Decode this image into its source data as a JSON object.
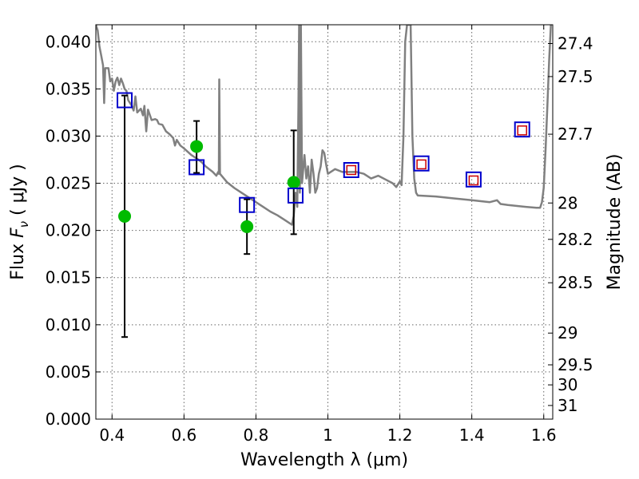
{
  "chart_data": {
    "type": "scatter",
    "xlabel": "Wavelength  λ (μm)",
    "ylabel": "Flux  F_ν  ( μJy )",
    "ylabel_parts": {
      "main": "Flux  ",
      "var": "F",
      "sub": "ν",
      "unit": "  ( μJy )"
    },
    "y2label": "Magnitude (AB)",
    "xlim": [
      0.355,
      1.625
    ],
    "ylim": [
      0.0,
      0.0418
    ],
    "x_ticks": [
      {
        "value": 0.4,
        "label": "0.4"
      },
      {
        "value": 0.6,
        "label": "0.6"
      },
      {
        "value": 0.8,
        "label": "0.8"
      },
      {
        "value": 1.0,
        "label": "1"
      },
      {
        "value": 1.2,
        "label": "1.2"
      },
      {
        "value": 1.4,
        "label": "1.4"
      },
      {
        "value": 1.6,
        "label": "1.6"
      }
    ],
    "y_ticks": [
      {
        "value": 0.0,
        "label": "0.000"
      },
      {
        "value": 0.005,
        "label": "0.005"
      },
      {
        "value": 0.01,
        "label": "0.010"
      },
      {
        "value": 0.015,
        "label": "0.015"
      },
      {
        "value": 0.02,
        "label": "0.020"
      },
      {
        "value": 0.025,
        "label": "0.025"
      },
      {
        "value": 0.03,
        "label": "0.030"
      },
      {
        "value": 0.035,
        "label": "0.035"
      },
      {
        "value": 0.04,
        "label": "0.040"
      }
    ],
    "y2_ticks": [
      {
        "mag": 27.4,
        "label": "27.4"
      },
      {
        "mag": 27.5,
        "label": "27.5"
      },
      {
        "mag": 27.7,
        "label": "27.7"
      },
      {
        "mag": 28.0,
        "label": "28"
      },
      {
        "mag": 28.2,
        "label": "28.2"
      },
      {
        "mag": 28.5,
        "label": "28.5"
      },
      {
        "mag": 29.0,
        "label": "29"
      },
      {
        "mag": 29.5,
        "label": "29.5"
      },
      {
        "mag": 30.0,
        "label": "30"
      },
      {
        "mag": 31.0,
        "label": "31"
      }
    ],
    "grid": true,
    "colors": {
      "model": "#808080",
      "observed": "#00bb00",
      "model_phot": "#0000cc",
      "upper": "#cc0000",
      "errorbar": "#000000"
    },
    "series": [
      {
        "kind": "line",
        "points": [
          [
            0.355,
            0.0418
          ],
          [
            0.36,
            0.0412
          ],
          [
            0.365,
            0.0395
          ],
          [
            0.37,
            0.0385
          ],
          [
            0.375,
            0.0375
          ],
          [
            0.378,
            0.0335
          ],
          [
            0.381,
            0.0372
          ],
          [
            0.39,
            0.0372
          ],
          [
            0.395,
            0.0358
          ],
          [
            0.4,
            0.0361
          ],
          [
            0.405,
            0.0348
          ],
          [
            0.41,
            0.0358
          ],
          [
            0.415,
            0.0362
          ],
          [
            0.42,
            0.0354
          ],
          [
            0.425,
            0.0361
          ],
          [
            0.43,
            0.0356
          ],
          [
            0.435,
            0.035
          ],
          [
            0.44,
            0.0348
          ],
          [
            0.445,
            0.0338
          ],
          [
            0.45,
            0.0335
          ],
          [
            0.455,
            0.0332
          ],
          [
            0.46,
            0.0327
          ],
          [
            0.465,
            0.0342
          ],
          [
            0.47,
            0.0325
          ],
          [
            0.48,
            0.0329
          ],
          [
            0.486,
            0.0322
          ],
          [
            0.49,
            0.0332
          ],
          [
            0.495,
            0.0305
          ],
          [
            0.5,
            0.0328
          ],
          [
            0.51,
            0.0317
          ],
          [
            0.52,
            0.0318
          ],
          [
            0.525,
            0.0317
          ],
          [
            0.53,
            0.0313
          ],
          [
            0.54,
            0.0312
          ],
          [
            0.55,
            0.0305
          ],
          [
            0.56,
            0.0302
          ],
          [
            0.57,
            0.0298
          ],
          [
            0.575,
            0.029
          ],
          [
            0.58,
            0.0296
          ],
          [
            0.59,
            0.029
          ],
          [
            0.6,
            0.0287
          ],
          [
            0.62,
            0.028
          ],
          [
            0.64,
            0.0275
          ],
          [
            0.65,
            0.0272
          ],
          [
            0.66,
            0.0268
          ],
          [
            0.68,
            0.0262
          ],
          [
            0.69,
            0.0258
          ],
          [
            0.695,
            0.0262
          ],
          [
            0.697,
            0.026
          ],
          [
            0.698,
            0.036
          ],
          [
            0.7,
            0.026
          ],
          [
            0.72,
            0.0251
          ],
          [
            0.74,
            0.0245
          ],
          [
            0.76,
            0.024
          ],
          [
            0.78,
            0.0235
          ],
          [
            0.8,
            0.023
          ],
          [
            0.82,
            0.0225
          ],
          [
            0.84,
            0.022
          ],
          [
            0.86,
            0.0216
          ],
          [
            0.88,
            0.0211
          ],
          [
            0.9,
            0.0206
          ],
          [
            0.905,
            0.0215
          ],
          [
            0.91,
            0.024
          ],
          [
            0.915,
            0.0225
          ],
          [
            0.918,
            0.033
          ],
          [
            0.92,
            0.0418
          ],
          [
            0.922,
            0.024
          ],
          [
            0.925,
            0.0418
          ],
          [
            0.928,
            0.025
          ],
          [
            0.935,
            0.028
          ],
          [
            0.94,
            0.0255
          ],
          [
            0.945,
            0.0268
          ],
          [
            0.95,
            0.024
          ],
          [
            0.955,
            0.0275
          ],
          [
            0.96,
            0.026
          ],
          [
            0.965,
            0.024
          ],
          [
            0.97,
            0.0245
          ],
          [
            0.975,
            0.026
          ],
          [
            0.98,
            0.0268
          ],
          [
            0.985,
            0.0285
          ],
          [
            0.99,
            0.0282
          ],
          [
            0.995,
            0.027
          ],
          [
            1.0,
            0.026
          ],
          [
            1.02,
            0.0265
          ],
          [
            1.04,
            0.0262
          ],
          [
            1.06,
            0.0262
          ],
          [
            1.08,
            0.0262
          ],
          [
            1.1,
            0.026
          ],
          [
            1.12,
            0.0255
          ],
          [
            1.14,
            0.0258
          ],
          [
            1.16,
            0.0254
          ],
          [
            1.18,
            0.025
          ],
          [
            1.19,
            0.0246
          ],
          [
            1.2,
            0.0252
          ],
          [
            1.205,
            0.0248
          ],
          [
            1.21,
            0.03
          ],
          [
            1.215,
            0.04
          ],
          [
            1.22,
            0.0418
          ],
          [
            1.23,
            0.0418
          ],
          [
            1.235,
            0.03
          ],
          [
            1.24,
            0.0255
          ],
          [
            1.245,
            0.024
          ],
          [
            1.25,
            0.0237
          ],
          [
            1.3,
            0.0236
          ],
          [
            1.35,
            0.0234
          ],
          [
            1.4,
            0.0232
          ],
          [
            1.45,
            0.023
          ],
          [
            1.47,
            0.0232
          ],
          [
            1.48,
            0.0228
          ],
          [
            1.5,
            0.0227
          ],
          [
            1.55,
            0.0225
          ],
          [
            1.58,
            0.0224
          ],
          [
            1.59,
            0.0224
          ],
          [
            1.595,
            0.023
          ],
          [
            1.6,
            0.0245
          ],
          [
            1.605,
            0.0285
          ],
          [
            1.61,
            0.033
          ],
          [
            1.615,
            0.038
          ],
          [
            1.62,
            0.0418
          ]
        ]
      },
      {
        "kind": "observed",
        "points": [
          {
            "x": 0.435,
            "y": 0.0215,
            "yerr_low": 0.0087,
            "yerr_high": 0.0343
          },
          {
            "x": 0.635,
            "y": 0.0289,
            "yerr_low": 0.0261,
            "yerr_high": 0.0316
          },
          {
            "x": 0.775,
            "y": 0.0204,
            "yerr_low": 0.0175,
            "yerr_high": 0.0233
          },
          {
            "x": 0.905,
            "y": 0.0251,
            "yerr_low": 0.0196,
            "yerr_high": 0.0306
          }
        ]
      },
      {
        "kind": "model_phot",
        "points": [
          {
            "x": 0.435,
            "y": 0.0338
          },
          {
            "x": 0.635,
            "y": 0.0267
          },
          {
            "x": 0.775,
            "y": 0.0227
          },
          {
            "x": 0.91,
            "y": 0.0237
          },
          {
            "x": 1.065,
            "y": 0.0264
          },
          {
            "x": 1.26,
            "y": 0.0271
          },
          {
            "x": 1.405,
            "y": 0.0254
          },
          {
            "x": 1.54,
            "y": 0.0307
          }
        ]
      },
      {
        "kind": "upper",
        "points": [
          {
            "x": 1.065,
            "y": 0.0264
          },
          {
            "x": 1.26,
            "y": 0.027
          },
          {
            "x": 1.405,
            "y": 0.0253
          },
          {
            "x": 1.54,
            "y": 0.0306
          }
        ]
      }
    ]
  }
}
